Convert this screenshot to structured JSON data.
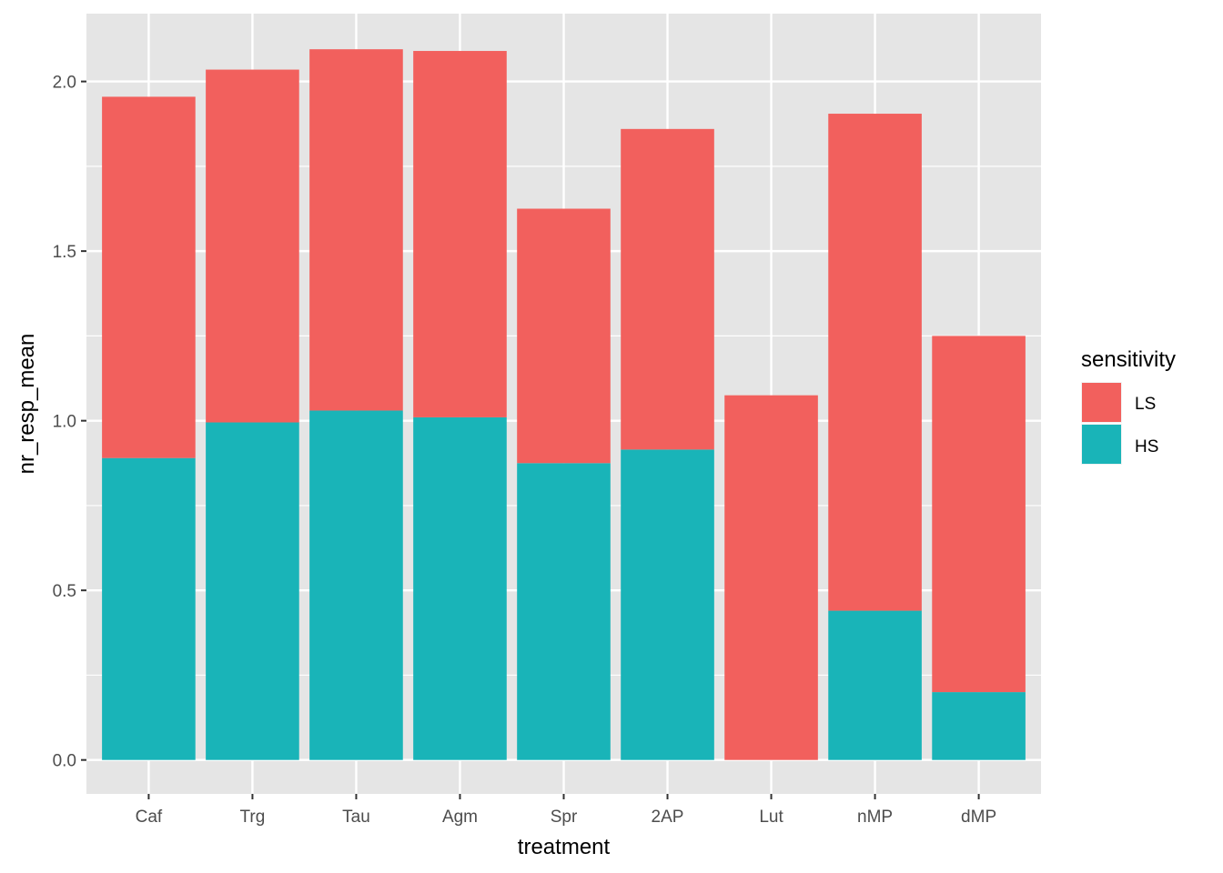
{
  "chart_data": {
    "type": "bar",
    "stacked": true,
    "title": "",
    "xlabel": "treatment",
    "ylabel": "nr_resp_mean",
    "categories": [
      "Caf",
      "Trg",
      "Tau",
      "Agm",
      "Spr",
      "2AP",
      "Lut",
      "nMP",
      "dMP"
    ],
    "series": [
      {
        "name": "HS",
        "color": "#19B4B8",
        "values": [
          0.89,
          0.995,
          1.03,
          1.01,
          0.875,
          0.915,
          0.0,
          0.44,
          0.2
        ]
      },
      {
        "name": "LS",
        "color": "#F2605D",
        "values": [
          1.065,
          1.04,
          1.065,
          1.08,
          0.75,
          0.945,
          1.075,
          1.465,
          1.05
        ]
      }
    ],
    "ylim": [
      -0.1,
      2.2
    ],
    "yticks": [
      0.0,
      0.5,
      1.0,
      1.5,
      2.0
    ],
    "ytick_labels": [
      "0.0",
      "0.5",
      "1.0",
      "1.5",
      "2.0"
    ],
    "grid": true,
    "legend": {
      "title": "sensitivity",
      "placement": "right",
      "entries": [
        {
          "label": "LS",
          "color": "#F2605D"
        },
        {
          "label": "HS",
          "color": "#19B4B8"
        }
      ]
    },
    "panel_background": "#E5E5E5",
    "grid_color": "#FFFFFF"
  }
}
